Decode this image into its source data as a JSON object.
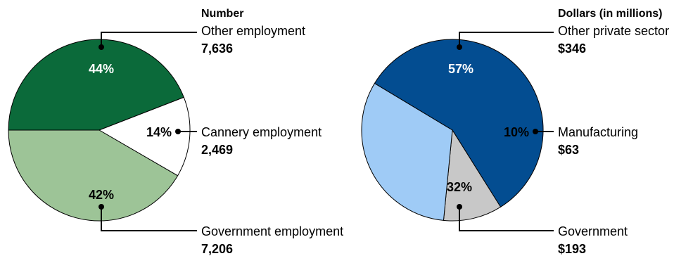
{
  "chart_data": [
    {
      "type": "pie",
      "header": "Number",
      "slices": [
        {
          "label": "Other employment",
          "value": 7636,
          "value_label": "7,636",
          "percent_label": "44%",
          "color": "#0b6a3a",
          "pct_color": "#ffffff"
        },
        {
          "label": "Cannery employment",
          "value": 2469,
          "value_label": "2,469",
          "percent_label": "14%",
          "color": "#ffffff",
          "pct_color": "#000000"
        },
        {
          "label": "Government employment",
          "value": 7206,
          "value_label": "7,206",
          "percent_label": "42%",
          "color": "#9dc497",
          "pct_color": "#000000"
        }
      ]
    },
    {
      "type": "pie",
      "header": "Dollars (in millions)",
      "slices": [
        {
          "label": "Other private sector",
          "value": 346,
          "value_label": "$346",
          "percent_label": "57%",
          "color": "#034d91",
          "pct_color": "#ffffff"
        },
        {
          "label": "Manufacturing",
          "value": 63,
          "value_label": "$63",
          "percent_label": "10%",
          "color": "#c8c8c8",
          "pct_color": "#000000"
        },
        {
          "label": "Government",
          "value": 193,
          "value_label": "$193",
          "percent_label": "32%",
          "color": "#9fcbf6",
          "pct_color": "#000000"
        }
      ]
    }
  ]
}
